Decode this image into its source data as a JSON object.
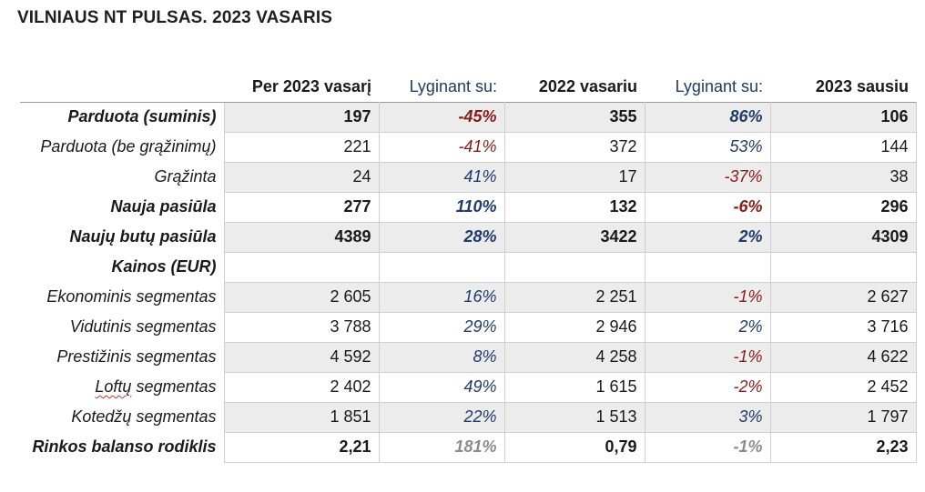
{
  "title": "VILNIAUS NT PULSAS. 2023 VASARIS",
  "headers": [
    "Per 2023 vasarį",
    "Lyginant su:",
    "2022 vasariu",
    "Lyginant su:",
    "2023 sausiu"
  ],
  "rows": [
    {
      "label": "Parduota (suminis)",
      "bold": true,
      "shade": true,
      "v1": "197",
      "c1": "-45%",
      "v2": "355",
      "c2": "86%",
      "v3": "106"
    },
    {
      "label": "Parduota (be grąžinimų)",
      "bold": false,
      "shade": false,
      "v1": "221",
      "c1": "-41%",
      "v2": "372",
      "c2": "53%",
      "v3": "144"
    },
    {
      "label": "Grąžinta",
      "bold": false,
      "shade": true,
      "v1": "24",
      "c1": "41%",
      "v2": "17",
      "c2": "-37%",
      "v3": "38"
    },
    {
      "label": "Nauja pasiūla",
      "bold": true,
      "shade": false,
      "v1": "277",
      "c1": "110%",
      "v2": "132",
      "c2": "-6%",
      "v3": "296"
    },
    {
      "label": "Naujų butų pasiūla",
      "bold": true,
      "shade": true,
      "v1": "4389",
      "c1": "28%",
      "v2": "3422",
      "c2": "2%",
      "v3": "4309"
    },
    {
      "label": "Kainos (EUR)",
      "bold": true,
      "shade": false,
      "v1": "",
      "c1": "",
      "v2": "",
      "c2": "",
      "v3": ""
    },
    {
      "label": "Ekonominis segmentas",
      "bold": false,
      "shade": true,
      "v1": "2 605",
      "c1": "16%",
      "v2": "2 251",
      "c2": "-1%",
      "v3": "2 627"
    },
    {
      "label": "Vidutinis segmentas",
      "bold": false,
      "shade": false,
      "v1": "3 788",
      "c1": "29%",
      "v2": "2 946",
      "c2": "2%",
      "v3": "3 716"
    },
    {
      "label": "Prestižinis segmentas",
      "bold": false,
      "shade": true,
      "v1": "4 592",
      "c1": "8%",
      "v2": "4 258",
      "c2": "-1%",
      "v3": "4 622"
    },
    {
      "label": "Loftų segmentas",
      "bold": false,
      "shade": false,
      "v1": "2 402",
      "c1": "49%",
      "v2": "1 615",
      "c2": "-2%",
      "v3": "2 452"
    },
    {
      "label": "Kotedžų segmentas",
      "bold": false,
      "shade": true,
      "v1": "1 851",
      "c1": "22%",
      "v2": "1 513",
      "c2": "3%",
      "v3": "1 797"
    },
    {
      "label": "Rinkos balanso rodiklis",
      "bold": true,
      "shade": false,
      "v1": "2,21",
      "c1": "181%",
      "v2": "0,79",
      "c2": "-1%",
      "v3": "2,23",
      "cmp_gray": true
    }
  ],
  "colors": {
    "negative": "#8b1a1a",
    "positive": "#1f3a6b",
    "neutral": "#8c8c8c",
    "shade": "#ececec"
  }
}
